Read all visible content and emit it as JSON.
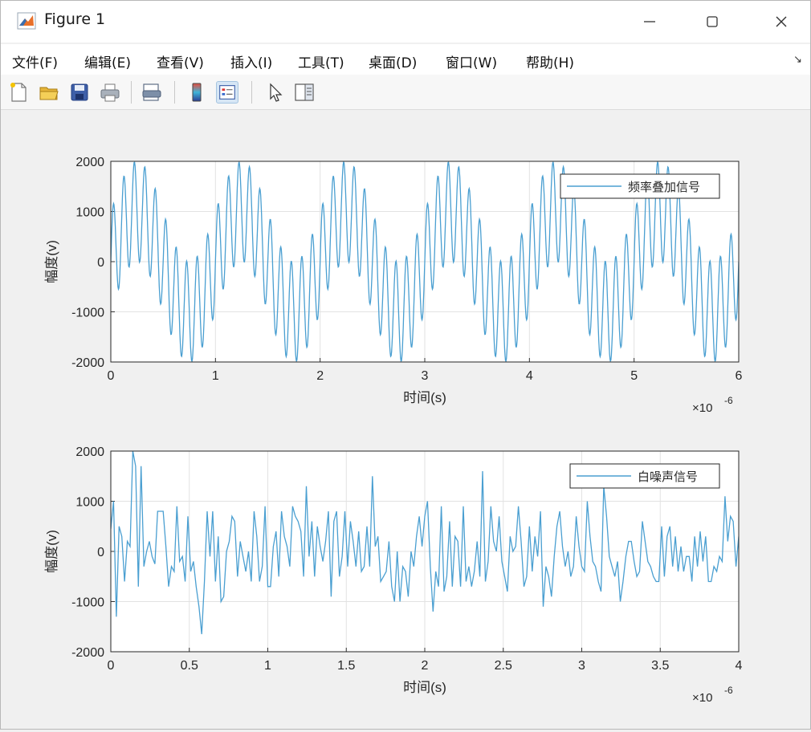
{
  "window": {
    "title": "Figure 1"
  },
  "menu": [
    {
      "label": "文件(F)"
    },
    {
      "label": "编辑(E)"
    },
    {
      "label": "查看(V)"
    },
    {
      "label": "插入(I)"
    },
    {
      "label": "工具(T)"
    },
    {
      "label": "桌面(D)"
    },
    {
      "label": "窗口(W)"
    },
    {
      "label": "帮助(H)"
    }
  ],
  "toolbar": {
    "icons": [
      "new-figure-icon",
      "open-file-icon",
      "save-icon",
      "print-icon",
      "print-preview-icon",
      "colorbar-icon",
      "legend-icon",
      "pointer-icon",
      "property-editor-icon"
    ]
  },
  "chart_data": [
    {
      "type": "line",
      "legend": "频率叠加信号",
      "legend_position": "top-right",
      "ylabel": "幅度(v)",
      "xlabel": "时间(s)",
      "x_exponent_label": "×10",
      "x_exponent": "-6",
      "xlim": [
        0,
        6
      ],
      "ylim": [
        -2000,
        2000
      ],
      "xticks": [
        "0",
        "1",
        "2",
        "3",
        "4",
        "5",
        "6"
      ],
      "yticks": [
        "2000",
        "1000",
        "0",
        "-1000",
        "-2000"
      ],
      "grid": true,
      "line_color": "#4a9fd1",
      "signal": {
        "base_amplitude": 1000,
        "base_period": 1.0,
        "high_amplitude": 1000,
        "high_period": 0.1
      }
    },
    {
      "type": "line",
      "legend": "白噪声信号",
      "legend_position": "top-right",
      "ylabel": "幅度(v)",
      "xlabel": "时间(s)",
      "x_exponent_label": "×10",
      "x_exponent": "-6",
      "xlim": [
        0,
        4
      ],
      "ylim": [
        -2000,
        2000
      ],
      "xticks": [
        "0",
        "0.5",
        "1",
        "1.5",
        "2",
        "2.5",
        "3",
        "3.5",
        "4"
      ],
      "yticks": [
        "2000",
        "1000",
        "0",
        "-1000",
        "-2000"
      ],
      "grid": true,
      "line_color": "#4a9fd1",
      "values": [
        450,
        1000,
        -1300,
        500,
        300,
        -600,
        200,
        100,
        2000,
        1700,
        -700,
        1700,
        -300,
        0,
        200,
        -100,
        -250,
        800,
        800,
        800,
        100,
        -700,
        -300,
        -400,
        900,
        -200,
        -100,
        -600,
        700,
        -400,
        -200,
        -700,
        -1100,
        -1650,
        -600,
        800,
        -100,
        800,
        -600,
        300,
        -1000,
        -900,
        0,
        200,
        700,
        600,
        -500,
        200,
        -100,
        -400,
        0,
        -600,
        800,
        300,
        -600,
        -300,
        900,
        -700,
        -700,
        100,
        400,
        -500,
        800,
        300,
        100,
        -300,
        900,
        700,
        600,
        400,
        -500,
        1300,
        -100,
        600,
        -500,
        500,
        100,
        -200,
        200,
        800,
        -900,
        600,
        800,
        -500,
        -100,
        800,
        -300,
        600,
        200,
        -300,
        400,
        -400,
        -300,
        500,
        -300,
        1500,
        100,
        300,
        -600,
        -500,
        -400,
        200,
        -700,
        -1000,
        0,
        -1000,
        -300,
        -400,
        -900,
        0,
        -300,
        300,
        700,
        100,
        700,
        1000,
        -300,
        -1200,
        -400,
        -700,
        900,
        -800,
        -500,
        600,
        -700,
        300,
        200,
        -700,
        900,
        -600,
        -300,
        -700,
        -400,
        200,
        -500,
        1600,
        -600,
        -200,
        900,
        200,
        0,
        700,
        -200,
        -500,
        -800,
        300,
        0,
        100,
        900,
        200,
        -700,
        -500,
        500,
        -400,
        300,
        -100,
        800,
        -1100,
        -300,
        -500,
        -900,
        -100,
        500,
        800,
        100,
        -300,
        0,
        -500,
        -300,
        700,
        100,
        -300,
        -400,
        1000,
        300,
        -200,
        -300,
        -600,
        -800,
        1300,
        700,
        -100,
        -300,
        -500,
        -200,
        -1000,
        -600,
        -100,
        200,
        200,
        -200,
        -500,
        -400,
        600,
        200,
        -200,
        -300,
        -500,
        -600,
        -600,
        500,
        -500,
        300,
        500,
        -300,
        300,
        -400,
        100,
        -400,
        -100,
        -100,
        -600,
        300,
        -300,
        400,
        -200,
        300,
        -600,
        -600,
        -300,
        -400,
        -100,
        -200,
        1100,
        200,
        700,
        600,
        -300,
        300
      ]
    }
  ]
}
